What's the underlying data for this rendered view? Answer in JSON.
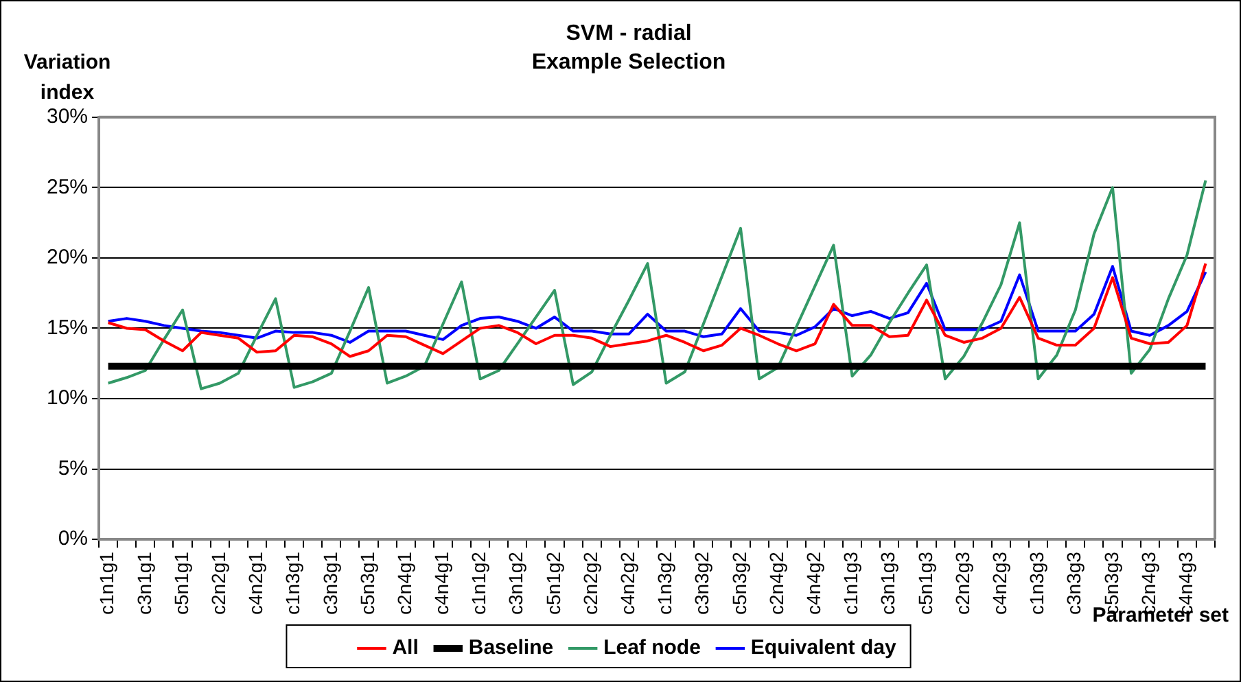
{
  "chart_data": {
    "type": "line",
    "title": "SVM - radial",
    "subtitle": "Example Selection",
    "ylabel": "Variation index",
    "xlabel": "Parameter set",
    "categories": [
      "c1n1g1",
      null,
      "c3n1g1",
      null,
      "c5n1g1",
      null,
      "c2n2g1",
      null,
      "c4n2g1",
      null,
      "c1n3g1",
      null,
      "c3n3g1",
      null,
      "c5n3g1",
      null,
      "c2n4g1",
      null,
      "c4n4g1",
      null,
      "c1n1g2",
      null,
      "c3n1g2",
      null,
      "c5n1g2",
      null,
      "c2n2g2",
      null,
      "c4n2g2",
      null,
      "c1n3g2",
      null,
      "c3n3g2",
      null,
      "c5n3g2",
      null,
      "c2n4g2",
      null,
      "c4n4g2",
      null,
      "c1n1g3",
      null,
      "c3n1g3",
      null,
      "c5n1g3",
      null,
      "c2n2g3",
      null,
      "c4n2g3",
      null,
      "c1n3g3",
      null,
      "c3n3g3",
      null,
      "c5n3g3",
      null,
      "c2n4g3",
      null,
      "c4n4g3",
      null
    ],
    "series": [
      {
        "name": "All",
        "color": "#ff0000",
        "values": [
          15.4,
          15.0,
          14.9,
          14.1,
          13.4,
          14.7,
          14.5,
          14.3,
          13.3,
          13.4,
          14.5,
          14.4,
          13.9,
          13.0,
          13.4,
          14.5,
          14.4,
          13.8,
          13.2,
          14.1,
          15.0,
          15.2,
          14.7,
          13.9,
          14.5,
          14.5,
          14.3,
          13.7,
          13.9,
          14.1,
          14.5,
          14.0,
          13.4,
          13.8,
          15.0,
          14.5,
          13.9,
          13.4,
          13.9,
          16.7,
          15.2,
          15.2,
          14.4,
          14.5,
          17.0,
          14.5,
          14.0,
          14.3,
          15.0,
          17.2,
          14.3,
          13.8,
          13.8,
          15.0,
          18.6,
          14.3,
          13.9,
          14.0,
          15.2,
          19.6
        ]
      },
      {
        "name": "Baseline",
        "color": "#000000",
        "values": [
          12.3,
          12.3,
          12.3,
          12.3,
          12.3,
          12.3,
          12.3,
          12.3,
          12.3,
          12.3,
          12.3,
          12.3,
          12.3,
          12.3,
          12.3,
          12.3,
          12.3,
          12.3,
          12.3,
          12.3,
          12.3,
          12.3,
          12.3,
          12.3,
          12.3,
          12.3,
          12.3,
          12.3,
          12.3,
          12.3,
          12.3,
          12.3,
          12.3,
          12.3,
          12.3,
          12.3,
          12.3,
          12.3,
          12.3,
          12.3,
          12.3,
          12.3,
          12.3,
          12.3,
          12.3,
          12.3,
          12.3,
          12.3,
          12.3,
          12.3,
          12.3,
          12.3,
          12.3,
          12.3,
          12.3,
          12.3,
          12.3,
          12.3,
          12.3,
          12.3
        ]
      },
      {
        "name": "Leaf node",
        "color": "#339966",
        "values": [
          11.1,
          11.5,
          12.0,
          14.2,
          16.3,
          10.7,
          11.1,
          11.8,
          14.5,
          17.1,
          10.8,
          11.2,
          11.8,
          14.8,
          17.9,
          11.1,
          11.6,
          12.3,
          15.3,
          18.3,
          11.4,
          12.0,
          13.9,
          15.8,
          17.7,
          11.0,
          11.9,
          14.5,
          17.0,
          19.6,
          11.1,
          11.9,
          15.3,
          18.7,
          22.1,
          11.4,
          12.2,
          15.1,
          18.0,
          20.9,
          11.6,
          13.1,
          15.4,
          17.5,
          19.5,
          11.4,
          13.0,
          15.4,
          18.1,
          22.5,
          11.4,
          13.1,
          16.3,
          21.7,
          25.0,
          11.8,
          13.5,
          17.1,
          20.2,
          25.5
        ]
      },
      {
        "name": "Equivalent day",
        "color": "#0000ff",
        "values": [
          15.5,
          15.7,
          15.5,
          15.2,
          15.0,
          14.8,
          14.7,
          14.5,
          14.3,
          14.8,
          14.7,
          14.7,
          14.5,
          14.0,
          14.8,
          14.8,
          14.8,
          14.5,
          14.2,
          15.2,
          15.7,
          15.8,
          15.5,
          15.0,
          15.8,
          14.8,
          14.8,
          14.6,
          14.6,
          16.0,
          14.8,
          14.8,
          14.4,
          14.6,
          16.4,
          14.8,
          14.7,
          14.5,
          15.1,
          16.4,
          15.9,
          16.2,
          15.7,
          16.1,
          18.2,
          14.9,
          14.9,
          14.9,
          15.5,
          18.8,
          14.8,
          14.8,
          14.8,
          16.0,
          19.4,
          14.8,
          14.5,
          15.2,
          16.2,
          19.0
        ]
      }
    ],
    "ylim": [
      0,
      30
    ],
    "yticks": [
      {
        "value": 0,
        "label": "0%"
      },
      {
        "value": 5,
        "label": "5%"
      },
      {
        "value": 10,
        "label": "10%"
      },
      {
        "value": 15,
        "label": "15%"
      },
      {
        "value": 20,
        "label": "20%"
      },
      {
        "value": 25,
        "label": "25%"
      },
      {
        "value": 30,
        "label": "30%"
      }
    ],
    "grid": "y",
    "legend": "bottom",
    "marker": "none",
    "line_style": "solid"
  }
}
